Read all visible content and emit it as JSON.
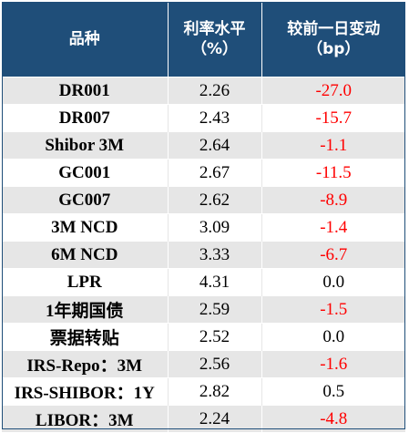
{
  "header": {
    "col1": "品种",
    "col2_line1": "利率水平",
    "col2_line2": "（%）",
    "col3_line1": "较前一日变动",
    "col3_line2": "（bp）"
  },
  "rows": [
    {
      "name": "DR001",
      "rate": "2.26",
      "change": "-27.0"
    },
    {
      "name": "DR007",
      "rate": "2.43",
      "change": "-15.7"
    },
    {
      "name": "Shibor 3M",
      "rate": "2.64",
      "change": "-1.1"
    },
    {
      "name": "GC001",
      "rate": "2.67",
      "change": "-11.5"
    },
    {
      "name": "GC007",
      "rate": "2.62",
      "change": "-8.9"
    },
    {
      "name": "3M NCD",
      "rate": "3.09",
      "change": "-1.4"
    },
    {
      "name": "6M NCD",
      "rate": "3.33",
      "change": "-6.7"
    },
    {
      "name": "LPR",
      "rate": "4.31",
      "change": "0.0"
    },
    {
      "name": "1年期国债",
      "rate": "2.59",
      "change": "-1.5"
    },
    {
      "name": "票据转贴",
      "rate": "2.52",
      "change": "0.0"
    },
    {
      "name": "IRS-Repo：3M",
      "rate": "2.56",
      "change": "-1.6"
    },
    {
      "name": "IRS-SHIBOR：1Y",
      "rate": "2.82",
      "change": "0.5"
    },
    {
      "name": "LIBOR：3M",
      "rate": "2.24",
      "change": "-4.8"
    }
  ],
  "colors": {
    "header_bg": "#1f4e79",
    "stripe_bg": "#e6e6e6",
    "negative": "#ff0000"
  }
}
